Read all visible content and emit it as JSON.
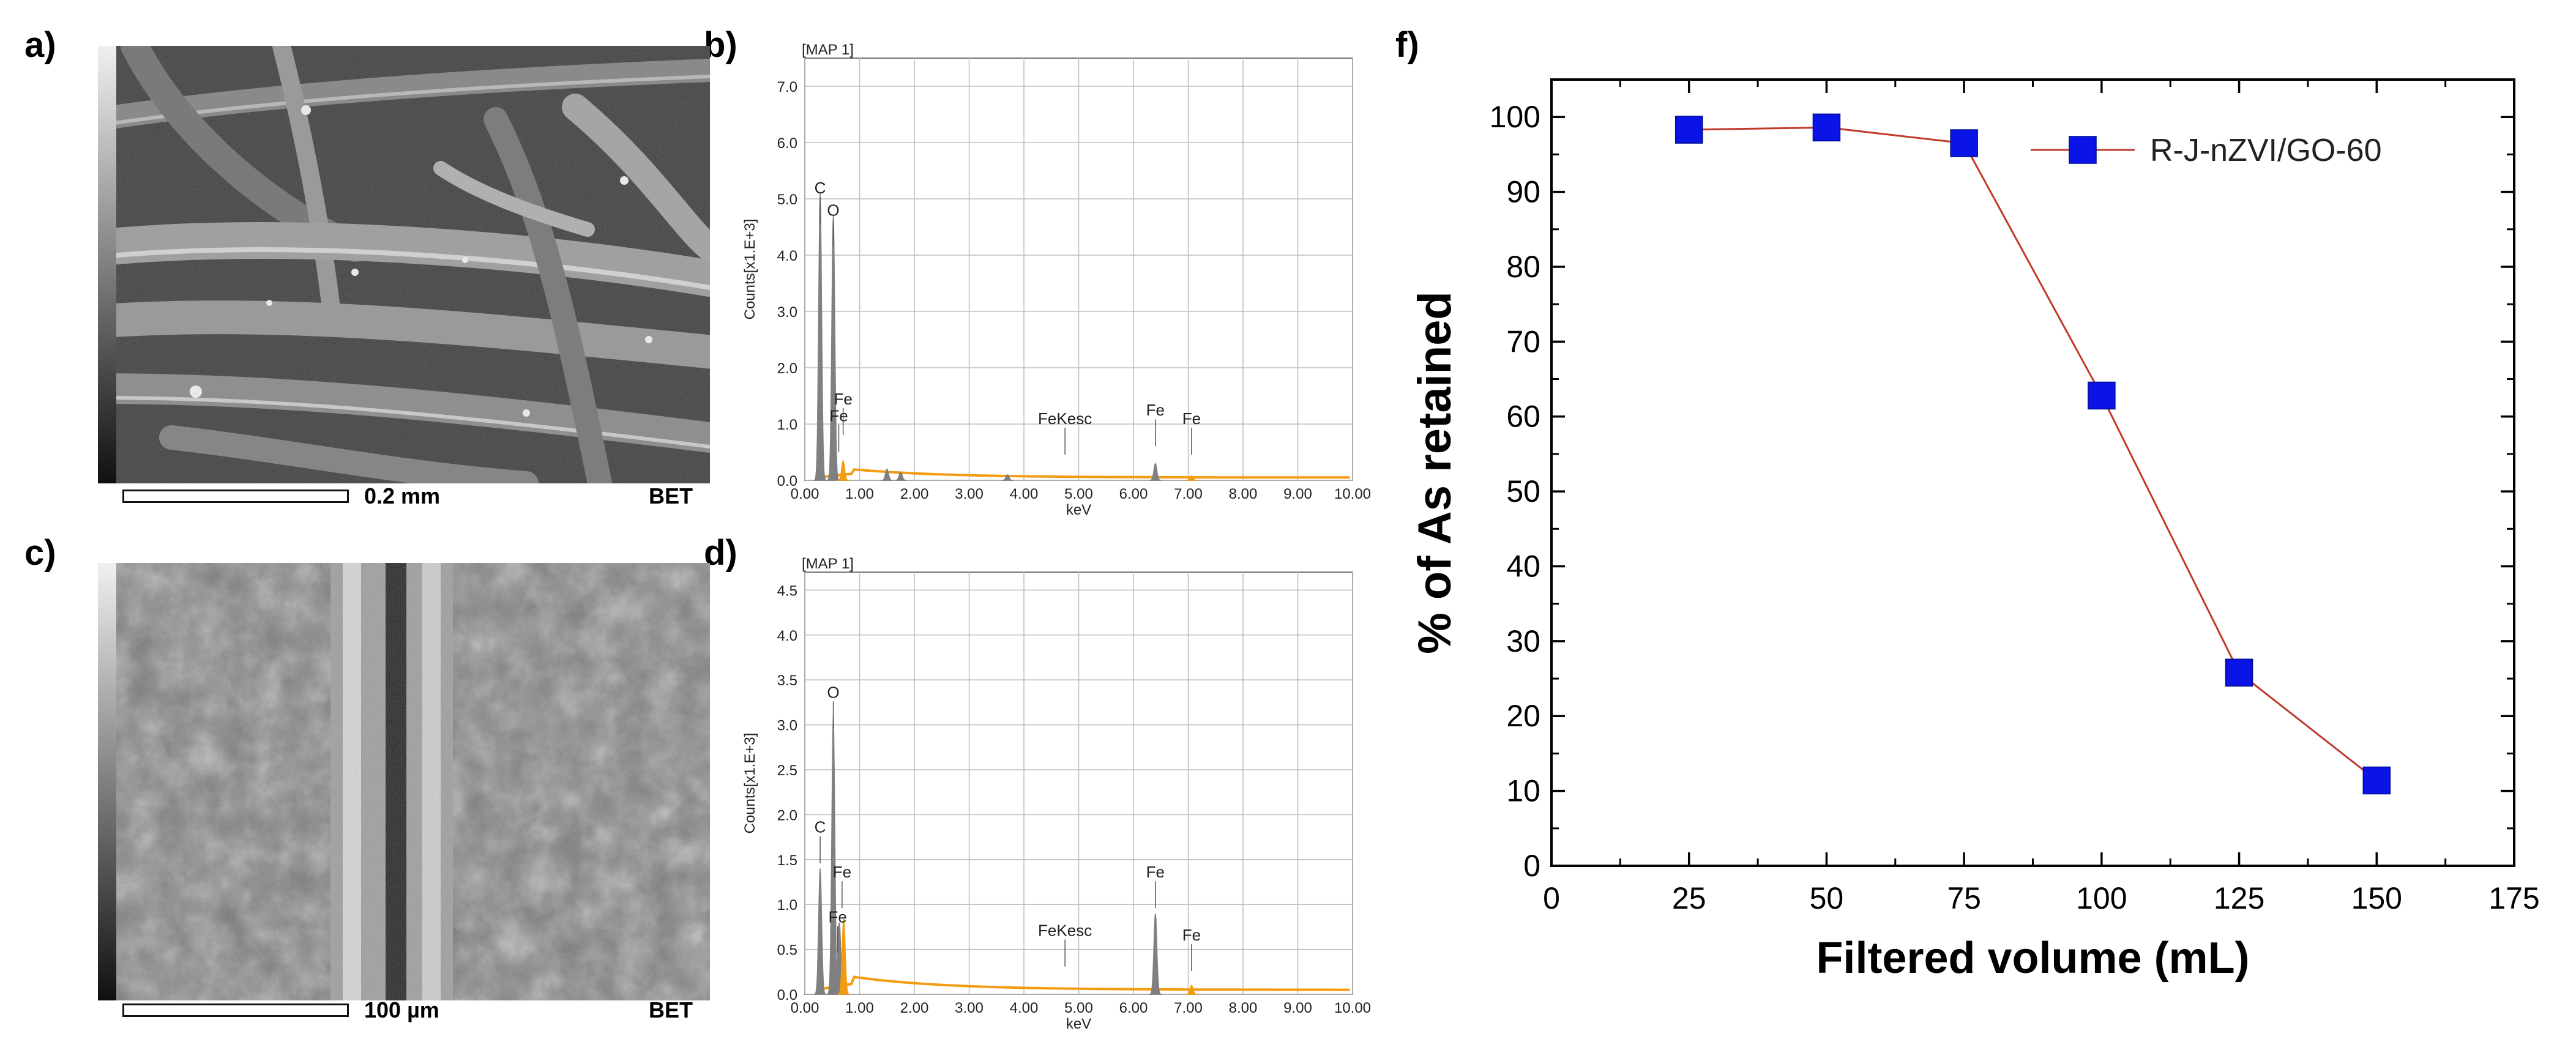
{
  "panels": {
    "a": {
      "label": "a)",
      "scale_label": "0.2 mm",
      "tag": "BET"
    },
    "b": {
      "label": "b)"
    },
    "c": {
      "label": "c)",
      "scale_label": "100 µm",
      "tag": "BET"
    },
    "d": {
      "label": "d)"
    },
    "f": {
      "label": "f)"
    }
  },
  "chart_data": [
    {
      "id": "b",
      "type": "area",
      "title": "[MAP 1]",
      "xlabel": "keV",
      "ylabel": "Counts[x1.E+3]",
      "xlim": [
        0,
        10
      ],
      "ylim": [
        0,
        7.5
      ],
      "xticks": [
        "0.00",
        "1.00",
        "2.00",
        "3.00",
        "4.00",
        "5.00",
        "6.00",
        "7.00",
        "8.00",
        "9.00",
        "10.00"
      ],
      "yticks": [
        "0.0",
        "1.0",
        "2.0",
        "3.0",
        "4.0",
        "5.0",
        "6.0",
        "7.0"
      ],
      "grid": true,
      "peaks": [
        {
          "x": 0.28,
          "y": 5.1,
          "color": "#808080"
        },
        {
          "x": 0.52,
          "y": 4.7,
          "color": "#808080"
        },
        {
          "x": 0.7,
          "y": 0.35,
          "color": "#f39c12"
        },
        {
          "x": 1.5,
          "y": 0.2,
          "color": "#808080"
        },
        {
          "x": 1.75,
          "y": 0.15,
          "color": "#808080"
        },
        {
          "x": 3.7,
          "y": 0.1,
          "color": "#808080"
        },
        {
          "x": 6.4,
          "y": 0.3,
          "color": "#808080"
        },
        {
          "x": 7.06,
          "y": 0.08,
          "color": "#f39c12"
        }
      ],
      "annotations": [
        {
          "text": "C",
          "x": 0.28,
          "y": 5.1
        },
        {
          "text": "O",
          "x": 0.52,
          "y": 4.7
        },
        {
          "text": "Fe",
          "x": 0.7,
          "y": 1.35
        },
        {
          "text": "Fe",
          "x": 0.62,
          "y": 1.05
        },
        {
          "text": "FeKesc",
          "x": 4.75,
          "y": 1.0
        },
        {
          "text": "Fe",
          "x": 6.4,
          "y": 1.15
        },
        {
          "text": "Fe",
          "x": 7.06,
          "y": 1.0
        }
      ]
    },
    {
      "id": "d",
      "type": "area",
      "title": "[MAP 1]",
      "xlabel": "keV",
      "ylabel": "Counts[x1.E+3]",
      "xlim": [
        0,
        10
      ],
      "ylim": [
        0,
        4.7
      ],
      "xticks": [
        "0.00",
        "1.00",
        "2.00",
        "3.00",
        "4.00",
        "5.00",
        "6.00",
        "7.00",
        "8.00",
        "9.00",
        "10.00"
      ],
      "yticks": [
        "0.0",
        "0.5",
        "1.0",
        "1.5",
        "2.0",
        "2.5",
        "3.0",
        "3.5",
        "4.0",
        "4.5"
      ],
      "grid": true,
      "peaks": [
        {
          "x": 0.28,
          "y": 1.4,
          "color": "#808080"
        },
        {
          "x": 0.52,
          "y": 3.1,
          "color": "#808080"
        },
        {
          "x": 0.63,
          "y": 0.8,
          "color": "#808080"
        },
        {
          "x": 0.71,
          "y": 0.85,
          "color": "#f39c12"
        },
        {
          "x": 6.4,
          "y": 0.9,
          "color": "#808080"
        },
        {
          "x": 7.06,
          "y": 0.1,
          "color": "#f39c12"
        }
      ],
      "annotations": [
        {
          "text": "O",
          "x": 0.52,
          "y": 3.3
        },
        {
          "text": "C",
          "x": 0.28,
          "y": 1.8
        },
        {
          "text": "Fe",
          "x": 0.68,
          "y": 1.3
        },
        {
          "text": "Fe",
          "x": 0.6,
          "y": 0.8
        },
        {
          "text": "FeKesc",
          "x": 4.75,
          "y": 0.65
        },
        {
          "text": "Fe",
          "x": 6.4,
          "y": 1.3
        },
        {
          "text": "Fe",
          "x": 7.06,
          "y": 0.6
        }
      ]
    },
    {
      "id": "f",
      "type": "line",
      "xlabel": "Filtered volume (mL)",
      "ylabel": "% of As retained",
      "xlim": [
        0,
        175
      ],
      "ylim": [
        0,
        105
      ],
      "xticks": [
        0,
        25,
        50,
        75,
        100,
        125,
        150,
        175
      ],
      "yticks": [
        0,
        10,
        20,
        30,
        40,
        50,
        60,
        70,
        80,
        90,
        100
      ],
      "legend_position": "top-right",
      "series": [
        {
          "name": "R-J-nZVI/GO-60",
          "x": [
            25,
            50,
            75,
            100,
            125,
            150
          ],
          "y": [
            98.3,
            98.6,
            96.5,
            62.8,
            25.8,
            11.4
          ],
          "line_color": "#c0392b",
          "marker_color": "#0a14e6"
        }
      ]
    }
  ]
}
